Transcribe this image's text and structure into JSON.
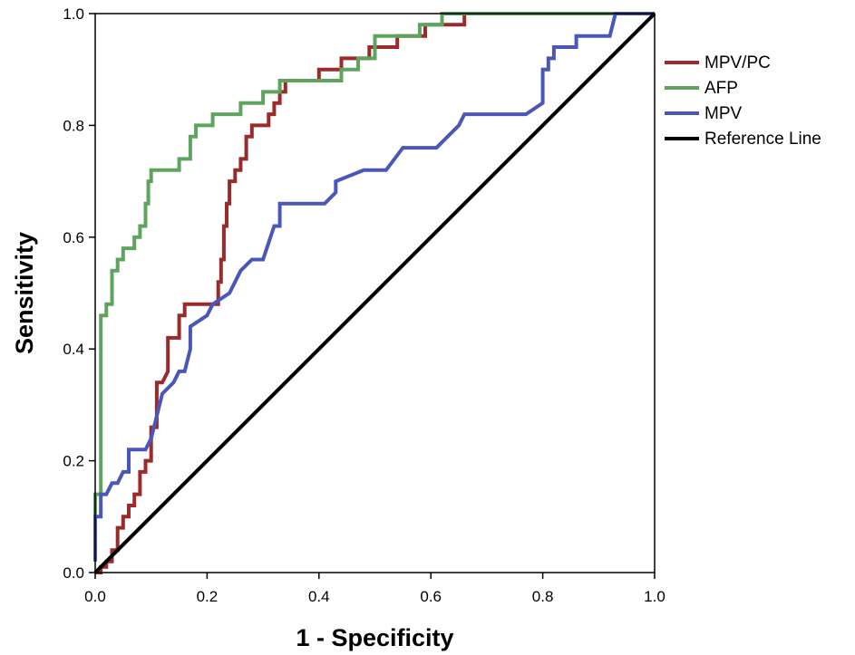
{
  "chart_data": {
    "type": "line",
    "title": "",
    "xlabel": "1 - Specificity",
    "ylabel": "Sensitivity",
    "xlim": [
      0,
      1
    ],
    "ylim": [
      0,
      1
    ],
    "x_ticks": [
      "0.0",
      "0.2",
      "0.4",
      "0.6",
      "0.8",
      "1.0"
    ],
    "y_ticks": [
      "0.0",
      "0.2",
      "0.4",
      "0.6",
      "0.8",
      "1.0"
    ],
    "grid": false,
    "legend_position": "right",
    "series": [
      {
        "name": "MPV/PC",
        "color": "#9b2a2a",
        "points": [
          [
            0,
            0
          ],
          [
            0.01,
            0
          ],
          [
            0.01,
            0.01
          ],
          [
            0.02,
            0.01
          ],
          [
            0.02,
            0.02
          ],
          [
            0.03,
            0.02
          ],
          [
            0.03,
            0.04
          ],
          [
            0.04,
            0.04
          ],
          [
            0.04,
            0.08
          ],
          [
            0.05,
            0.08
          ],
          [
            0.05,
            0.1
          ],
          [
            0.06,
            0.1
          ],
          [
            0.06,
            0.12
          ],
          [
            0.07,
            0.12
          ],
          [
            0.07,
            0.14
          ],
          [
            0.08,
            0.14
          ],
          [
            0.08,
            0.18
          ],
          [
            0.09,
            0.18
          ],
          [
            0.09,
            0.2
          ],
          [
            0.1,
            0.2
          ],
          [
            0.1,
            0.26
          ],
          [
            0.11,
            0.26
          ],
          [
            0.11,
            0.34
          ],
          [
            0.12,
            0.34
          ],
          [
            0.13,
            0.36
          ],
          [
            0.13,
            0.42
          ],
          [
            0.15,
            0.42
          ],
          [
            0.15,
            0.46
          ],
          [
            0.16,
            0.46
          ],
          [
            0.16,
            0.48
          ],
          [
            0.22,
            0.48
          ],
          [
            0.22,
            0.52
          ],
          [
            0.225,
            0.52
          ],
          [
            0.225,
            0.56
          ],
          [
            0.23,
            0.56
          ],
          [
            0.23,
            0.62
          ],
          [
            0.235,
            0.62
          ],
          [
            0.235,
            0.66
          ],
          [
            0.24,
            0.66
          ],
          [
            0.24,
            0.7
          ],
          [
            0.25,
            0.7
          ],
          [
            0.25,
            0.72
          ],
          [
            0.26,
            0.72
          ],
          [
            0.26,
            0.74
          ],
          [
            0.27,
            0.74
          ],
          [
            0.27,
            0.78
          ],
          [
            0.28,
            0.78
          ],
          [
            0.28,
            0.8
          ],
          [
            0.31,
            0.8
          ],
          [
            0.31,
            0.82
          ],
          [
            0.32,
            0.82
          ],
          [
            0.32,
            0.84
          ],
          [
            0.33,
            0.84
          ],
          [
            0.33,
            0.86
          ],
          [
            0.34,
            0.86
          ],
          [
            0.34,
            0.88
          ],
          [
            0.4,
            0.88
          ],
          [
            0.4,
            0.9
          ],
          [
            0.44,
            0.9
          ],
          [
            0.44,
            0.92
          ],
          [
            0.49,
            0.92
          ],
          [
            0.49,
            0.94
          ],
          [
            0.54,
            0.94
          ],
          [
            0.54,
            0.96
          ],
          [
            0.59,
            0.96
          ],
          [
            0.59,
            0.98
          ],
          [
            0.66,
            0.98
          ],
          [
            0.66,
            1.0
          ],
          [
            1.0,
            1.0
          ]
        ]
      },
      {
        "name": "AFP",
        "color": "#5ea35e",
        "points": [
          [
            0,
            0.04
          ],
          [
            0,
            0.14
          ],
          [
            0.01,
            0.14
          ],
          [
            0.01,
            0.46
          ],
          [
            0.02,
            0.46
          ],
          [
            0.02,
            0.48
          ],
          [
            0.03,
            0.48
          ],
          [
            0.03,
            0.54
          ],
          [
            0.04,
            0.54
          ],
          [
            0.04,
            0.56
          ],
          [
            0.05,
            0.56
          ],
          [
            0.05,
            0.58
          ],
          [
            0.07,
            0.58
          ],
          [
            0.07,
            0.6
          ],
          [
            0.08,
            0.6
          ],
          [
            0.08,
            0.62
          ],
          [
            0.09,
            0.62
          ],
          [
            0.09,
            0.66
          ],
          [
            0.095,
            0.66
          ],
          [
            0.095,
            0.7
          ],
          [
            0.1,
            0.7
          ],
          [
            0.1,
            0.72
          ],
          [
            0.15,
            0.72
          ],
          [
            0.15,
            0.74
          ],
          [
            0.17,
            0.74
          ],
          [
            0.17,
            0.78
          ],
          [
            0.18,
            0.78
          ],
          [
            0.18,
            0.8
          ],
          [
            0.21,
            0.8
          ],
          [
            0.21,
            0.82
          ],
          [
            0.26,
            0.82
          ],
          [
            0.26,
            0.84
          ],
          [
            0.3,
            0.84
          ],
          [
            0.3,
            0.86
          ],
          [
            0.33,
            0.86
          ],
          [
            0.33,
            0.88
          ],
          [
            0.44,
            0.88
          ],
          [
            0.44,
            0.9
          ],
          [
            0.47,
            0.9
          ],
          [
            0.47,
            0.92
          ],
          [
            0.5,
            0.92
          ],
          [
            0.5,
            0.96
          ],
          [
            0.58,
            0.96
          ],
          [
            0.58,
            0.98
          ],
          [
            0.62,
            0.98
          ],
          [
            0.62,
            1.0
          ],
          [
            1.0,
            1.0
          ]
        ]
      },
      {
        "name": "MPV",
        "color": "#4b57b8",
        "points": [
          [
            0,
            0.02
          ],
          [
            0,
            0.1
          ],
          [
            0.01,
            0.1
          ],
          [
            0.01,
            0.14
          ],
          [
            0.02,
            0.14
          ],
          [
            0.03,
            0.16
          ],
          [
            0.04,
            0.16
          ],
          [
            0.05,
            0.18
          ],
          [
            0.06,
            0.18
          ],
          [
            0.06,
            0.22
          ],
          [
            0.09,
            0.22
          ],
          [
            0.1,
            0.24
          ],
          [
            0.11,
            0.28
          ],
          [
            0.12,
            0.32
          ],
          [
            0.14,
            0.34
          ],
          [
            0.15,
            0.36
          ],
          [
            0.16,
            0.36
          ],
          [
            0.17,
            0.4
          ],
          [
            0.17,
            0.44
          ],
          [
            0.2,
            0.46
          ],
          [
            0.21,
            0.48
          ],
          [
            0.24,
            0.5
          ],
          [
            0.26,
            0.54
          ],
          [
            0.28,
            0.56
          ],
          [
            0.3,
            0.56
          ],
          [
            0.32,
            0.62
          ],
          [
            0.33,
            0.62
          ],
          [
            0.33,
            0.66
          ],
          [
            0.41,
            0.66
          ],
          [
            0.43,
            0.68
          ],
          [
            0.43,
            0.7
          ],
          [
            0.48,
            0.72
          ],
          [
            0.52,
            0.72
          ],
          [
            0.55,
            0.76
          ],
          [
            0.61,
            0.76
          ],
          [
            0.65,
            0.8
          ],
          [
            0.66,
            0.82
          ],
          [
            0.77,
            0.82
          ],
          [
            0.8,
            0.84
          ],
          [
            0.8,
            0.9
          ],
          [
            0.81,
            0.9
          ],
          [
            0.81,
            0.92
          ],
          [
            0.82,
            0.92
          ],
          [
            0.82,
            0.94
          ],
          [
            0.86,
            0.94
          ],
          [
            0.86,
            0.96
          ],
          [
            0.92,
            0.96
          ],
          [
            0.93,
            1.0
          ],
          [
            1.0,
            1.0
          ]
        ]
      },
      {
        "name": "Reference Line",
        "color": "#000000",
        "points": [
          [
            0,
            0
          ],
          [
            1,
            1
          ]
        ]
      }
    ]
  }
}
